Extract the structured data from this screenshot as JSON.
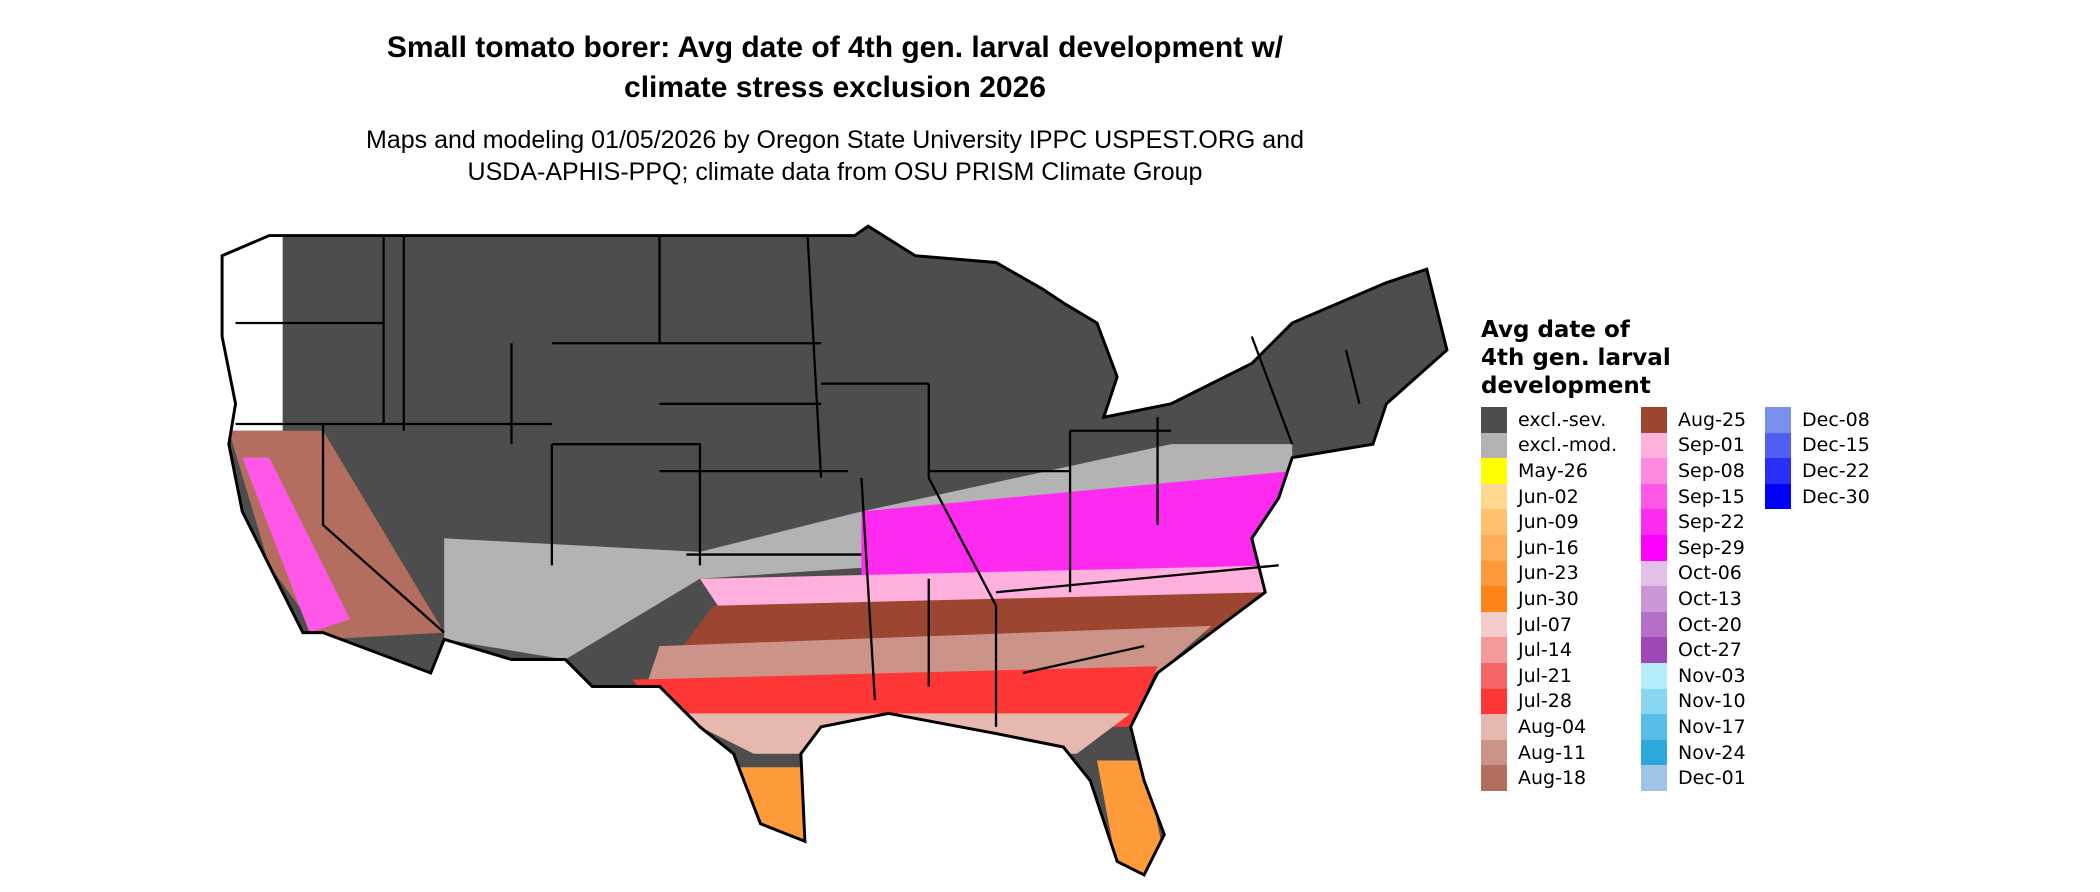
{
  "title_lines": [
    "Small tomato borer: Avg date of 4th gen. larval development w/",
    "climate stress exclusion 2026"
  ],
  "subtitle_lines": [
    "Maps and modeling 01/05/2026 by Oregon State University IPPC USPEST.ORG and",
    "USDA-APHIS-PPQ; climate data from OSU PRISM Climate Group"
  ],
  "legend": {
    "title_lines": [
      "Avg date of",
      "4th gen. larval",
      "development"
    ],
    "columns": [
      [
        {
          "label": "excl.-sev.",
          "color": "#4d4d4d"
        },
        {
          "label": "excl.-mod.",
          "color": "#b3b3b3"
        },
        {
          "label": "May-26",
          "color": "#ffff00"
        },
        {
          "label": "Jun-02",
          "color": "#ffd98f"
        },
        {
          "label": "Jun-09",
          "color": "#ffc170"
        },
        {
          "label": "Jun-16",
          "color": "#ffac58"
        },
        {
          "label": "Jun-23",
          "color": "#ff9a3a"
        },
        {
          "label": "Jun-30",
          "color": "#ff8418"
        },
        {
          "label": "Jul-07",
          "color": "#f5cccc"
        },
        {
          "label": "Jul-14",
          "color": "#f59a9a"
        },
        {
          "label": "Jul-21",
          "color": "#f56565"
        },
        {
          "label": "Jul-28",
          "color": "#fe3636"
        },
        {
          "label": "Aug-04",
          "color": "#e6b8b0"
        },
        {
          "label": "Aug-11",
          "color": "#cc9488"
        },
        {
          "label": "Aug-18",
          "color": "#b36e60"
        }
      ],
      [
        {
          "label": "Aug-25",
          "color": "#9c4631"
        },
        {
          "label": "Sep-01",
          "color": "#ffb0dc"
        },
        {
          "label": "Sep-08",
          "color": "#ff88e0"
        },
        {
          "label": "Sep-15",
          "color": "#ff58e8"
        },
        {
          "label": "Sep-22",
          "color": "#ff2af0"
        },
        {
          "label": "Sep-29",
          "color": "#ff00ff"
        },
        {
          "label": "Oct-06",
          "color": "#e2c0e8"
        },
        {
          "label": "Oct-13",
          "color": "#cc96d6"
        },
        {
          "label": "Oct-20",
          "color": "#b46ec6"
        },
        {
          "label": "Oct-27",
          "color": "#9e48b8"
        },
        {
          "label": "Nov-03",
          "color": "#b4ecfc"
        },
        {
          "label": "Nov-10",
          "color": "#88d6f2"
        },
        {
          "label": "Nov-17",
          "color": "#58bee8"
        },
        {
          "label": "Nov-24",
          "color": "#2ca8dc"
        },
        {
          "label": "Dec-01",
          "color": "#a0c4e8"
        }
      ],
      [
        {
          "label": "Dec-08",
          "color": "#7890ec"
        },
        {
          "label": "Dec-15",
          "color": "#5060f2"
        },
        {
          "label": "Dec-22",
          "color": "#2830f8"
        },
        {
          "label": "Dec-30",
          "color": "#0000ff"
        }
      ]
    ]
  }
}
